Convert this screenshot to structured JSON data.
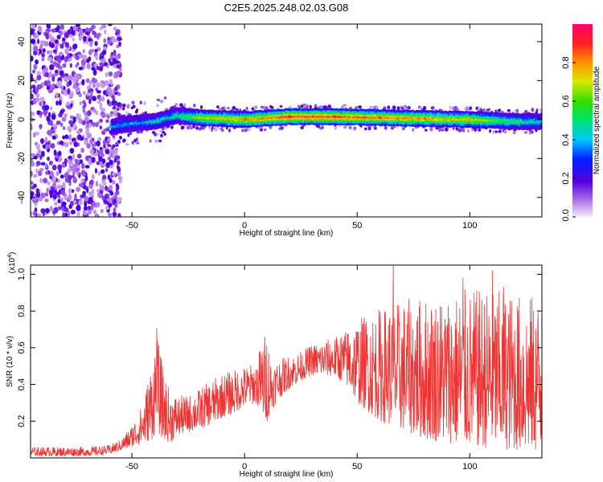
{
  "title": "C2E5.2025.248.02.03.G08",
  "chart_data": [
    {
      "type": "heatmap",
      "name": "spectrogram",
      "xlabel": "Height of straight line (km)",
      "ylabel": "Frequency (Hz)",
      "xlim": [
        -95,
        132
      ],
      "ylim": [
        -50,
        49
      ],
      "xticks": [
        -50,
        0,
        50,
        100
      ],
      "yticks": [
        -40,
        -20,
        0,
        20,
        40
      ],
      "xtick_labels": [
        "-50",
        "0",
        "50",
        "100"
      ],
      "ytick_labels": [
        "-40",
        "-20",
        "0",
        "20",
        "40"
      ],
      "colorbar": {
        "label": "Normalized spectral amplitude",
        "range": [
          0.0,
          1.0
        ],
        "ticks": [
          0.0,
          0.2,
          0.4,
          0.6,
          0.8
        ],
        "tick_labels": [
          "0.0",
          "0.2",
          "0.4",
          "0.6",
          "0.8"
        ]
      },
      "noise_region_xrange": [
        -95,
        -55
      ],
      "signal_track": [
        {
          "x": -60,
          "freq": -4.0,
          "amp": 0.45
        },
        {
          "x": -50,
          "freq": -2.0,
          "amp": 0.45
        },
        {
          "x": -40,
          "freq": -1.0,
          "amp": 0.5
        },
        {
          "x": -30,
          "freq": 2.0,
          "amp": 0.55
        },
        {
          "x": -20,
          "freq": 1.0,
          "amp": 0.75
        },
        {
          "x": 0,
          "freq": 0.0,
          "amp": 0.85
        },
        {
          "x": 20,
          "freq": 1.5,
          "amp": 0.95
        },
        {
          "x": 40,
          "freq": 1.5,
          "amp": 0.95
        },
        {
          "x": 60,
          "freq": 1.0,
          "amp": 0.9
        },
        {
          "x": 80,
          "freq": 0.5,
          "amp": 0.85
        },
        {
          "x": 100,
          "freq": 0.0,
          "amp": 0.8
        },
        {
          "x": 120,
          "freq": -1.0,
          "amp": 0.6
        },
        {
          "x": 132,
          "freq": -1.0,
          "amp": 0.5
        }
      ]
    },
    {
      "type": "line",
      "name": "snr",
      "xlabel": "Height of straight line (km)",
      "ylabel": "SNR (10 * v/v)",
      "y_multiplier": "(x10",
      "y_multiplier_exp": "4",
      "y_multiplier_close": ")",
      "color": "#ee3333",
      "xlim": [
        -95,
        132
      ],
      "ylim": [
        0,
        1.05
      ],
      "xticks": [
        -50,
        0,
        50,
        100
      ],
      "yticks": [
        0.2,
        0.4,
        0.6,
        0.8,
        1.0
      ],
      "xtick_labels": [
        "-50",
        "0",
        "50",
        "100"
      ],
      "ytick_labels": [
        "0.2",
        "0.4",
        "0.6",
        "0.8",
        "1.0"
      ],
      "envelope": {
        "x": [
          -95,
          -70,
          -60,
          -55,
          -50,
          -45,
          -41,
          -39,
          -36,
          -33,
          -30,
          -25,
          -20,
          -15,
          -10,
          -5,
          0,
          5,
          8,
          10,
          12,
          15,
          20,
          25,
          30,
          35,
          40,
          45,
          50,
          60,
          70,
          80,
          90,
          100,
          110,
          120,
          132
        ],
        "low": [
          0.01,
          0.01,
          0.02,
          0.04,
          0.06,
          0.08,
          0.1,
          0.14,
          0.1,
          0.08,
          0.12,
          0.14,
          0.16,
          0.18,
          0.22,
          0.24,
          0.28,
          0.3,
          0.22,
          0.2,
          0.26,
          0.32,
          0.38,
          0.42,
          0.45,
          0.45,
          0.44,
          0.4,
          0.3,
          0.2,
          0.15,
          0.1,
          0.08,
          0.06,
          0.05,
          0.04,
          0.03
        ],
        "high": [
          0.06,
          0.06,
          0.07,
          0.1,
          0.18,
          0.3,
          0.55,
          0.68,
          0.48,
          0.36,
          0.34,
          0.34,
          0.38,
          0.42,
          0.46,
          0.48,
          0.5,
          0.52,
          0.66,
          0.7,
          0.52,
          0.54,
          0.56,
          0.58,
          0.62,
          0.64,
          0.66,
          0.7,
          0.76,
          0.82,
          0.86,
          0.88,
          0.9,
          0.92,
          0.92,
          0.9,
          0.88
        ]
      },
      "peaks": [
        {
          "x": -39,
          "y": 0.71
        },
        {
          "x": 9,
          "y": 0.66
        },
        {
          "x": 66,
          "y": 1.05
        },
        {
          "x": 97,
          "y": 0.98
        },
        {
          "x": 110,
          "y": 1.02
        },
        {
          "x": 115,
          "y": 0.93
        }
      ]
    }
  ]
}
